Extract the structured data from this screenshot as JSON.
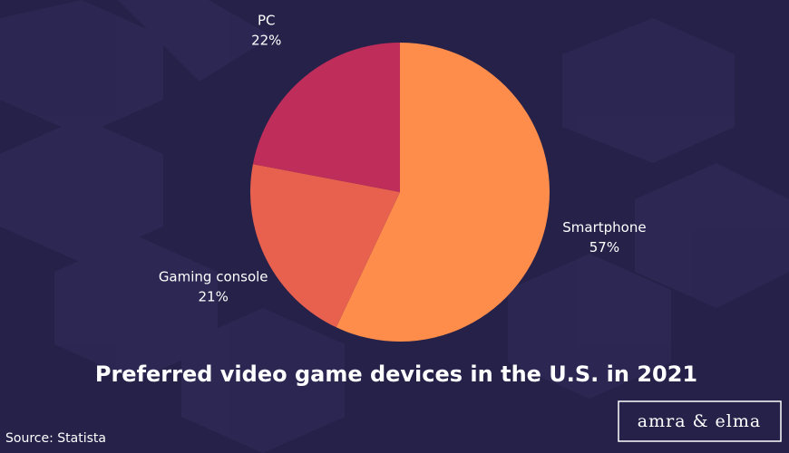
{
  "chart_data": {
    "type": "pie",
    "title": "Preferred video game devices in the U.S. in 2021",
    "categories": [
      "Smartphone",
      "Gaming console",
      "PC"
    ],
    "values": [
      57,
      21,
      22
    ],
    "value_labels": [
      "57%",
      "21%",
      "22%"
    ],
    "colors": [
      "#fe8d4b",
      "#e8614f",
      "#bf2d5a"
    ],
    "source": "Source: Statista",
    "brand": "amra & elma"
  }
}
